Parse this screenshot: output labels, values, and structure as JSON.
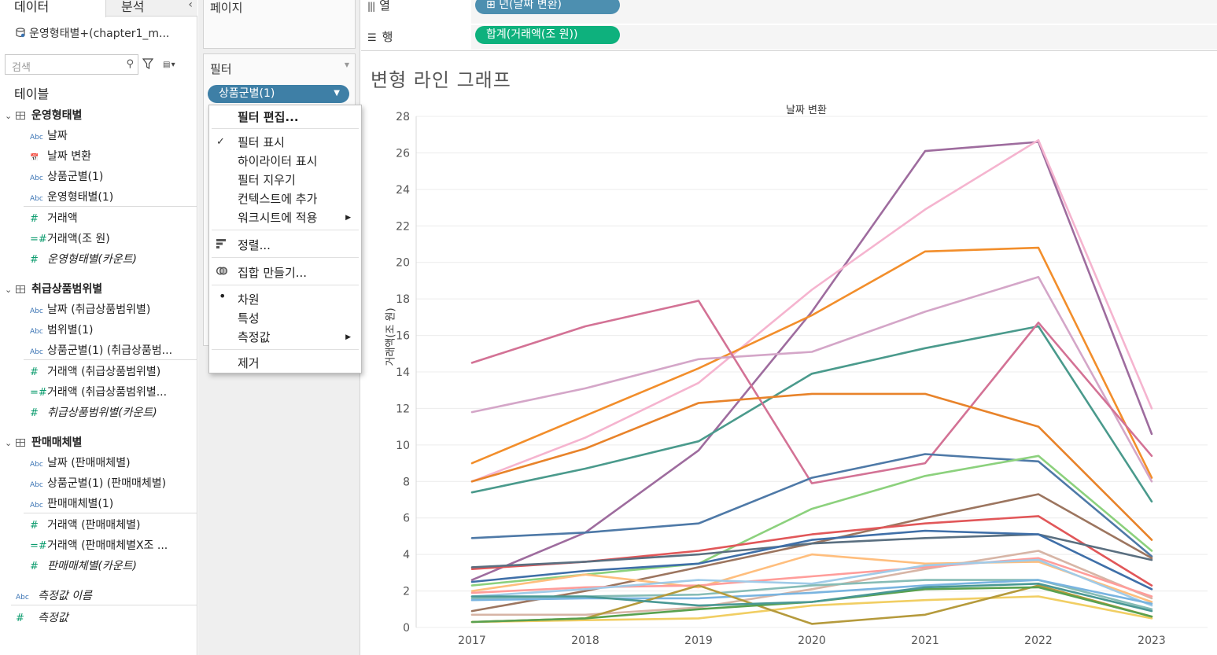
{
  "data_pane": {
    "tabs": [
      "데이터",
      "분석"
    ],
    "collapse_glyph": "‹",
    "datasource": "운영형태별+(chapter1_m...",
    "search_placeholder": "검색",
    "tables_heading": "테이블",
    "groups": [
      {
        "name": "운영형태별",
        "dimensions": [
          {
            "label": "날짜",
            "icon": "Abc"
          },
          {
            "label": "날짜 변환",
            "icon": "calendar-calc-icon"
          },
          {
            "label": "상품군별(1)",
            "icon": "Abc"
          },
          {
            "label": "운영형태별(1)",
            "icon": "Abc"
          }
        ],
        "measures": [
          {
            "label": "거래액",
            "icon": "#",
            "italic": false
          },
          {
            "label": "거래액(조 원)",
            "icon": "=#",
            "italic": false
          },
          {
            "label": "운영형태별(카운트)",
            "icon": "#",
            "italic": true
          }
        ]
      },
      {
        "name": "취급상품범위별",
        "dimensions": [
          {
            "label": "날짜 (취급상품범위별)",
            "icon": "Abc"
          },
          {
            "label": "범위별(1)",
            "icon": "Abc"
          },
          {
            "label": "상품군별(1) (취급상품범...",
            "icon": "Abc"
          }
        ],
        "measures": [
          {
            "label": "거래액 (취급상품범위별)",
            "icon": "#",
            "italic": false
          },
          {
            "label": "거래액 (취급상품범위별...",
            "icon": "=#",
            "italic": false
          },
          {
            "label": "취급상품범위별(카운트)",
            "icon": "#",
            "italic": true
          }
        ]
      },
      {
        "name": "판매매체별",
        "dimensions": [
          {
            "label": "날짜 (판매매체별)",
            "icon": "Abc"
          },
          {
            "label": "상품군별(1) (판매매체별)",
            "icon": "Abc"
          },
          {
            "label": "판매매체별(1)",
            "icon": "Abc"
          }
        ],
        "measures": [
          {
            "label": "거래액 (판매매체별)",
            "icon": "#",
            "italic": false
          },
          {
            "label": "거래액 (판매매체별X조 ...",
            "icon": "=#",
            "italic": false
          },
          {
            "label": "판매매체별(카운트)",
            "icon": "#",
            "italic": true
          }
        ]
      }
    ],
    "footer_fields": [
      {
        "label": "측정값 이름",
        "icon": "Abc"
      },
      {
        "label": "측정값",
        "icon": "#"
      }
    ]
  },
  "shelves": {
    "pages_label": "페이지",
    "filters_label": "필터",
    "filter_pill": "상품군별(1)",
    "columns_label": "열",
    "rows_label": "행",
    "columns_pill": "⊞ 년(날짜 변환)",
    "rows_pill": "합계(거래액(조 원))"
  },
  "context_menu": {
    "edit_filter": "필터 편집...",
    "show_filter": "필터 표시",
    "show_highlighter": "하이라이터 표시",
    "clear_filter": "필터 지우기",
    "add_to_context": "컨텍스트에 추가",
    "apply_to_worksheets": "워크시트에 적용",
    "sort": "정렬...",
    "create_set": "집합 만들기...",
    "dimension": "차원",
    "attribute": "특성",
    "measure": "측정값",
    "remove": "제거"
  },
  "viz": {
    "title": "변형 라인 그래프",
    "column_header": "날짜 변환",
    "y_axis_label": "거래액(조 원)"
  },
  "chart_data": {
    "type": "line",
    "title": "변형 라인 그래프",
    "xlabel": "날짜 변환",
    "ylabel": "거래액(조 원)",
    "ylim": [
      0,
      28
    ],
    "y_ticks": [
      0,
      2,
      4,
      6,
      8,
      10,
      12,
      14,
      16,
      18,
      20,
      22,
      24,
      26,
      28
    ],
    "grid": true,
    "x": [
      "2017",
      "2018",
      "2019",
      "2020",
      "2021",
      "2022",
      "2023"
    ],
    "series": [
      {
        "color": "#9e6c9e",
        "values": [
          2.6,
          5.2,
          9.7,
          17.3,
          26.1,
          26.6,
          10.6
        ]
      },
      {
        "color": "#f5b4cf",
        "values": [
          8.0,
          10.4,
          13.4,
          18.5,
          22.9,
          26.7,
          12.0
        ]
      },
      {
        "color": "#f28e2b",
        "values": [
          9.0,
          11.6,
          14.2,
          17.1,
          20.6,
          20.8,
          8.2
        ]
      },
      {
        "color": "#d4a6c8",
        "values": [
          11.8,
          13.1,
          14.7,
          15.1,
          17.3,
          19.2,
          8.0
        ]
      },
      {
        "color": "#4a9a8c",
        "values": [
          7.4,
          8.7,
          10.2,
          13.9,
          15.3,
          16.5,
          6.9
        ]
      },
      {
        "color": "#d37295",
        "values": [
          14.5,
          16.5,
          17.9,
          7.9,
          9.0,
          16.7,
          9.4
        ]
      },
      {
        "color": "#e8832a",
        "values": [
          8.0,
          9.8,
          12.3,
          12.8,
          12.8,
          11.0,
          4.8
        ]
      },
      {
        "color": "#4e79a7",
        "values": [
          4.9,
          5.2,
          5.7,
          8.2,
          9.5,
          9.1,
          3.9
        ]
      },
      {
        "color": "#8cd17d",
        "values": [
          2.3,
          2.9,
          3.5,
          6.5,
          8.3,
          9.4,
          4.2
        ]
      },
      {
        "color": "#9c755f",
        "values": [
          0.9,
          2.0,
          3.3,
          4.6,
          6.0,
          7.3,
          3.8
        ]
      },
      {
        "color": "#e15759",
        "values": [
          3.2,
          3.6,
          4.2,
          5.1,
          5.7,
          6.1,
          2.3
        ]
      },
      {
        "color": "#5a6f80",
        "values": [
          3.3,
          3.6,
          4.0,
          4.6,
          4.9,
          5.1,
          3.7
        ]
      },
      {
        "color": "#3f6fa8",
        "values": [
          2.5,
          3.1,
          3.5,
          4.8,
          5.3,
          5.1,
          2.1
        ]
      },
      {
        "color": "#ffbe7d",
        "values": [
          2.0,
          2.9,
          2.2,
          4.0,
          3.5,
          3.6,
          1.4
        ]
      },
      {
        "color": "#d7b5a6",
        "values": [
          0.7,
          0.7,
          1.1,
          2.1,
          3.2,
          4.2,
          1.6
        ]
      },
      {
        "color": "#ff9d9a",
        "values": [
          1.9,
          2.2,
          2.3,
          2.8,
          3.3,
          3.8,
          1.7
        ]
      },
      {
        "color": "#a0cbe8",
        "values": [
          1.7,
          2.1,
          2.6,
          2.4,
          3.4,
          3.7,
          1.2
        ]
      },
      {
        "color": "#86bcb6",
        "values": [
          1.6,
          1.7,
          1.8,
          2.3,
          2.6,
          2.6,
          1.0
        ]
      },
      {
        "color": "#79b4e0",
        "values": [
          1.5,
          1.6,
          1.6,
          1.9,
          2.3,
          2.6,
          1.3
        ]
      },
      {
        "color": "#f1ce63",
        "values": [
          0.3,
          0.4,
          0.5,
          1.2,
          1.5,
          1.7,
          0.5
        ]
      },
      {
        "color": "#b59a3c",
        "values": [
          0.3,
          0.5,
          2.3,
          0.2,
          0.7,
          2.3,
          0.6
        ]
      },
      {
        "color": "#59a14f",
        "values": [
          0.3,
          0.5,
          1.0,
          1.4,
          2.1,
          2.2,
          0.6
        ]
      },
      {
        "color": "#499894",
        "values": [
          1.7,
          1.7,
          1.2,
          1.4,
          2.2,
          2.4,
          0.9
        ]
      }
    ]
  }
}
